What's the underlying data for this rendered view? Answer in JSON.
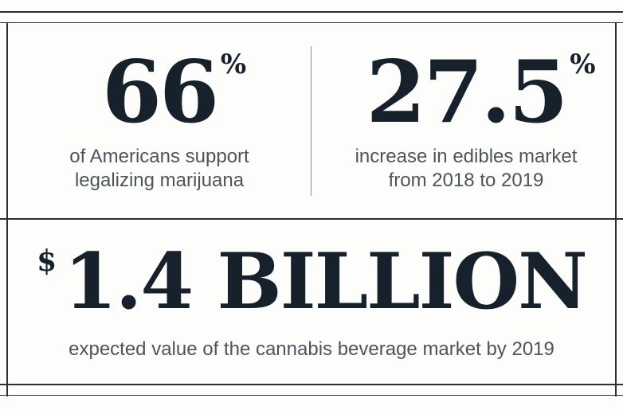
{
  "stat_left": {
    "value": "66",
    "suffix": "%",
    "caption_line1": "of Americans support",
    "caption_line2": "legalizing marijuana"
  },
  "stat_right": {
    "value": "27.5",
    "suffix": "%",
    "caption_line1": "increase in edibles market",
    "caption_line2": "from 2018 to 2019"
  },
  "stat_bottom": {
    "prefix": "$",
    "value": "1.4 BILLION",
    "caption": "expected value of the cannabis beverage market by 2019"
  },
  "colors": {
    "ink": "#17212c",
    "caption": "#4d545c",
    "rule": "#2a2f36",
    "background": "#fdfdfb"
  }
}
